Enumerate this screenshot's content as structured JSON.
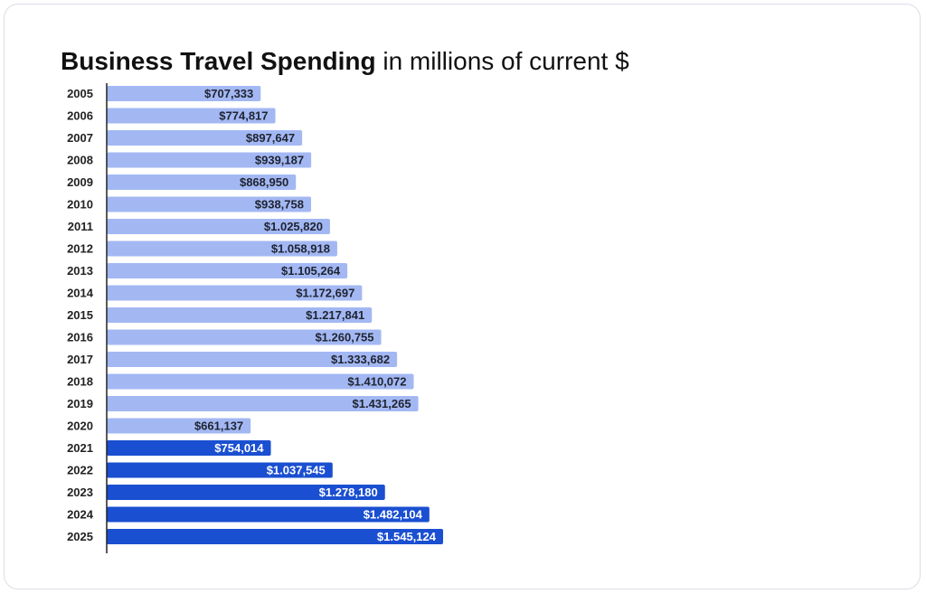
{
  "title": {
    "bold": "Business Travel Spending",
    "rest": "in millions of current $"
  },
  "colors": {
    "historical": "#a3b8f3",
    "forecast": "#1a4fd1",
    "historical_label": "#1f2330",
    "forecast_label": "#ffffff"
  },
  "chart_data": {
    "type": "bar",
    "orientation": "horizontal",
    "categories": [
      "2005",
      "2006",
      "2007",
      "2008",
      "2009",
      "2010",
      "2011",
      "2012",
      "2013",
      "2014",
      "2015",
      "2016",
      "2017",
      "2018",
      "2019",
      "2020",
      "2021",
      "2022",
      "2023",
      "2024",
      "2025"
    ],
    "values": [
      707333,
      774817,
      897647,
      939187,
      868950,
      938758,
      1025820,
      1058918,
      1105264,
      1172697,
      1217841,
      1260755,
      1333682,
      1410072,
      1431265,
      661137,
      754014,
      1037545,
      1278180,
      1482104,
      1545124
    ],
    "labels": [
      "$707,333",
      "$774,817",
      "$897,647",
      "$939,187",
      "$868,950",
      "$938,758",
      "$1.025,820",
      "$1.058,918",
      "$1.105,264",
      "$1.172,697",
      "$1.217,841",
      "$1.260,755",
      "$1.333,682",
      "$1.410,072",
      "$1.431,265",
      "$661,137",
      "$754,014",
      "$1.037,545",
      "$1.278,180",
      "$1.482,104",
      "$1.545,124"
    ],
    "forecast_from_index": 16,
    "xlim": [
      0,
      1545124
    ],
    "grid": false,
    "legend": "none"
  }
}
